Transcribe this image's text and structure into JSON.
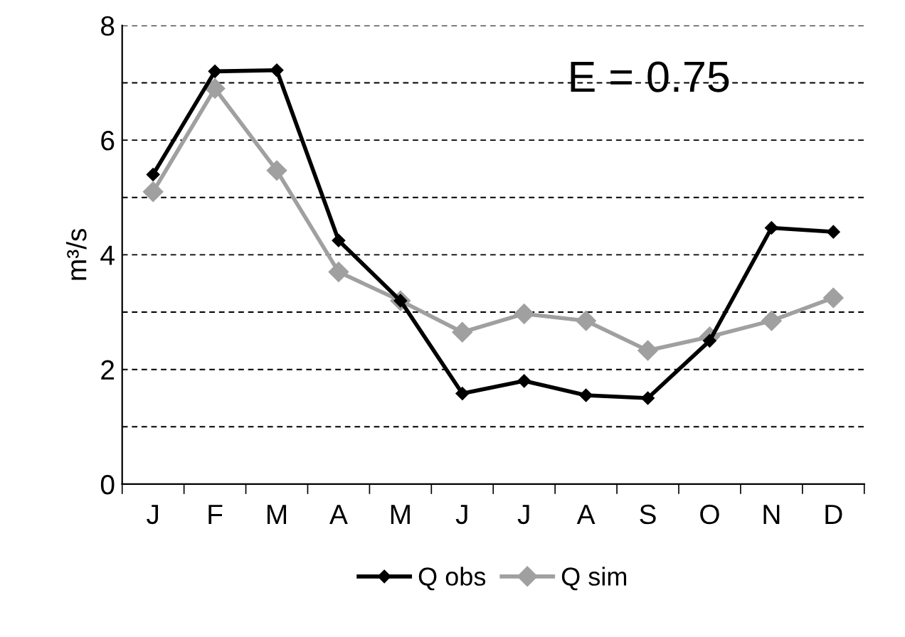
{
  "chart_data": {
    "type": "line",
    "ylabel": "m³/s",
    "categories": [
      "J",
      "F",
      "M",
      "A",
      "M",
      "J",
      "J",
      "A",
      "S",
      "O",
      "N",
      "D"
    ],
    "series": [
      {
        "name": "Q obs",
        "color": "#000000",
        "values": [
          5.4,
          7.2,
          7.22,
          4.25,
          3.2,
          1.58,
          1.8,
          1.55,
          1.5,
          2.5,
          4.47,
          4.4
        ]
      },
      {
        "name": "Q sim",
        "color": "#a0a0a0",
        "values": [
          5.1,
          6.9,
          5.47,
          3.7,
          3.2,
          2.65,
          2.97,
          2.85,
          2.33,
          2.57,
          2.85,
          3.25
        ]
      }
    ],
    "ylim": [
      0,
      8
    ],
    "yticks": [
      0,
      {
        "value": 1,
        "label": null
      },
      2,
      {
        "value": 3,
        "label": null
      },
      4,
      {
        "value": 5,
        "label": null
      },
      6,
      {
        "value": 7,
        "label": null
      },
      8
    ],
    "grid": "y",
    "legend": "bottom",
    "marker": "diamond",
    "line_style": "solid",
    "annotations": [
      "E = 0.75"
    ]
  }
}
